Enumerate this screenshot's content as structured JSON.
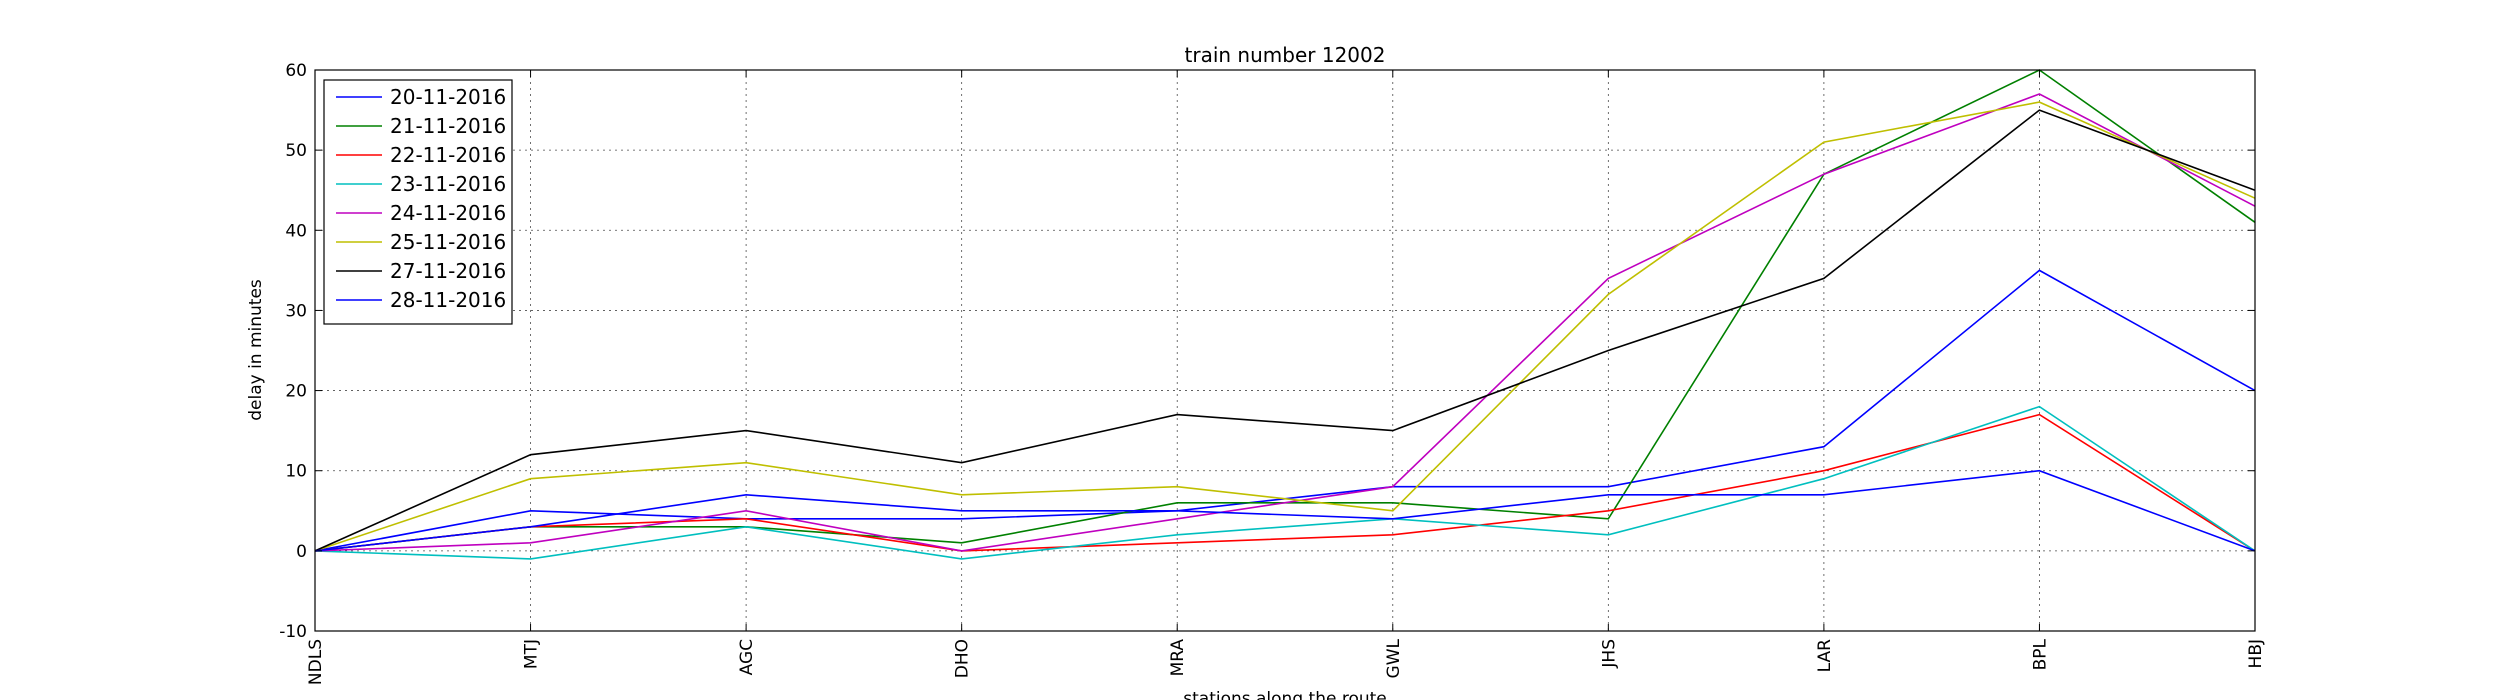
{
  "chart_data": {
    "type": "line",
    "title": "train number 12002",
    "xlabel": "stations along the route",
    "ylabel": "delay in minutes",
    "categories": [
      "NDLS",
      "MTJ",
      "AGC",
      "DHO",
      "MRA",
      "GWL",
      "JHS",
      "LAR",
      "BPL",
      "HBJ"
    ],
    "ylim": [
      -10,
      60
    ],
    "yticks": [
      -10,
      0,
      10,
      20,
      30,
      40,
      50,
      60
    ],
    "grid": true,
    "legend_position": "top-left",
    "series": [
      {
        "name": "20-11-2016",
        "color": "#0000ff",
        "values": [
          0,
          5,
          4,
          4,
          5,
          8,
          8,
          13,
          35,
          20
        ]
      },
      {
        "name": "21-11-2016",
        "color": "#008000",
        "values": [
          0,
          3,
          3,
          1,
          6,
          6,
          4,
          47,
          60,
          41
        ]
      },
      {
        "name": "22-11-2016",
        "color": "#ff0000",
        "values": [
          0,
          3,
          4,
          0,
          1,
          2,
          5,
          10,
          17,
          0
        ]
      },
      {
        "name": "23-11-2016",
        "color": "#00bfbf",
        "values": [
          0,
          -1,
          3,
          -1,
          2,
          4,
          2,
          9,
          18,
          0
        ]
      },
      {
        "name": "24-11-2016",
        "color": "#bf00bf",
        "values": [
          0,
          1,
          5,
          0,
          4,
          8,
          34,
          47,
          57,
          43
        ]
      },
      {
        "name": "25-11-2016",
        "color": "#bfbf00",
        "values": [
          0,
          9,
          11,
          7,
          8,
          5,
          32,
          51,
          56,
          44
        ]
      },
      {
        "name": "27-11-2016",
        "color": "#000000",
        "values": [
          0,
          12,
          15,
          11,
          17,
          15,
          25,
          34,
          55,
          45
        ]
      },
      {
        "name": "28-11-2016",
        "color": "#0000ff",
        "values": [
          0,
          3,
          7,
          5,
          5,
          4,
          7,
          7,
          10,
          0
        ]
      }
    ]
  }
}
